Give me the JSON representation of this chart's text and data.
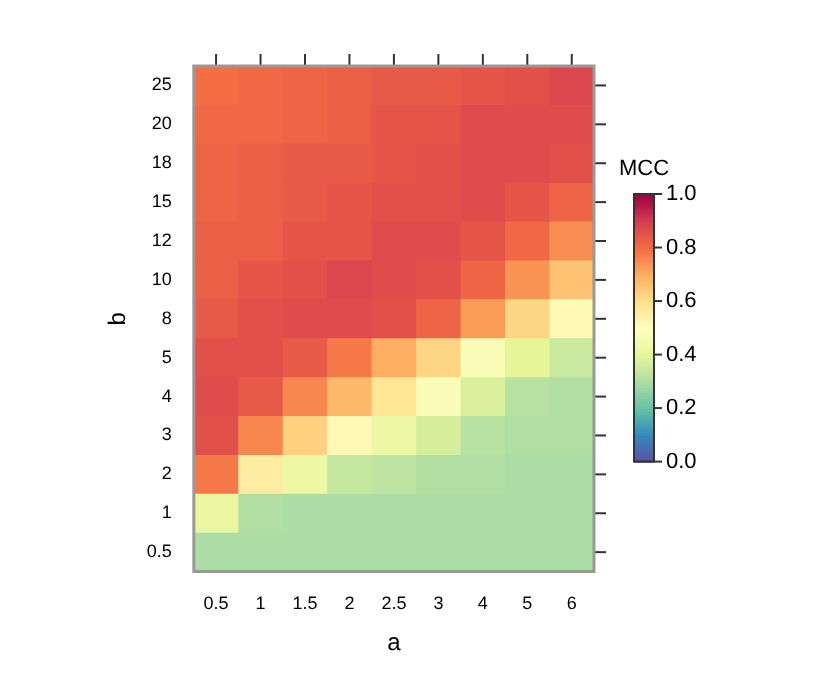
{
  "chart_data": {
    "type": "heatmap",
    "xlabel": "a",
    "ylabel": "b",
    "clabel": "MCC",
    "categories": [
      "0.5",
      "1",
      "1.5",
      "2",
      "2.5",
      "3",
      "4",
      "5",
      "6"
    ],
    "y_categories": [
      "25",
      "20",
      "18",
      "15",
      "12",
      "10",
      "8",
      "5",
      "4",
      "3",
      "2",
      "1",
      "0.5"
    ],
    "cells": [
      [
        0.8,
        0.81,
        0.82,
        0.83,
        0.84,
        0.84,
        0.85,
        0.86,
        0.88
      ],
      [
        0.81,
        0.81,
        0.82,
        0.83,
        0.85,
        0.85,
        0.87,
        0.87,
        0.87
      ],
      [
        0.82,
        0.83,
        0.84,
        0.84,
        0.85,
        0.86,
        0.87,
        0.87,
        0.86
      ],
      [
        0.82,
        0.83,
        0.84,
        0.85,
        0.86,
        0.86,
        0.87,
        0.85,
        0.82
      ],
      [
        0.83,
        0.83,
        0.85,
        0.85,
        0.87,
        0.87,
        0.85,
        0.81,
        0.75
      ],
      [
        0.83,
        0.85,
        0.86,
        0.88,
        0.87,
        0.86,
        0.82,
        0.74,
        0.66
      ],
      [
        0.84,
        0.86,
        0.87,
        0.87,
        0.86,
        0.82,
        0.73,
        0.62,
        0.52
      ],
      [
        0.86,
        0.86,
        0.84,
        0.78,
        0.7,
        0.62,
        0.48,
        0.4,
        0.35
      ],
      [
        0.87,
        0.84,
        0.76,
        0.68,
        0.58,
        0.48,
        0.38,
        0.32,
        0.31
      ],
      [
        0.86,
        0.76,
        0.63,
        0.52,
        0.43,
        0.37,
        0.32,
        0.31,
        0.31
      ],
      [
        0.78,
        0.56,
        0.43,
        0.34,
        0.33,
        0.31,
        0.31,
        0.3,
        0.3
      ],
      [
        0.42,
        0.31,
        0.3,
        0.3,
        0.3,
        0.3,
        0.3,
        0.3,
        0.3
      ],
      [
        0.3,
        0.3,
        0.3,
        0.3,
        0.3,
        0.3,
        0.3,
        0.3,
        0.3
      ]
    ],
    "clim": [
      0,
      1
    ],
    "cticks": [
      {
        "value": 0,
        "label": "0.0"
      },
      {
        "value": 0.2,
        "label": "0.2"
      },
      {
        "value": 0.4,
        "label": "0.4"
      },
      {
        "value": 0.6,
        "label": "0.6"
      },
      {
        "value": 0.8,
        "label": "0.8"
      },
      {
        "value": 1,
        "label": "1.0"
      }
    ]
  }
}
